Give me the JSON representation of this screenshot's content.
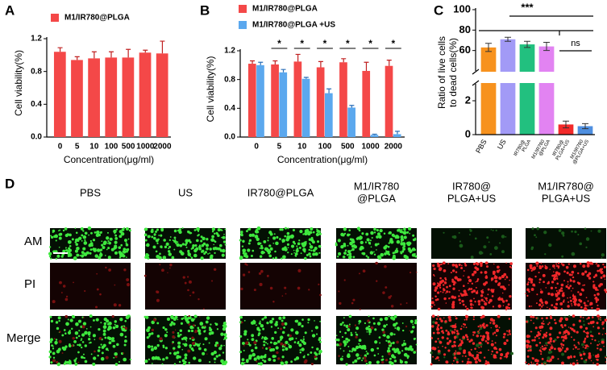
{
  "chart_data": [
    {
      "type": "bar",
      "panel_label": "A",
      "ylabel": "Cell viability(%)",
      "xlabel": "Concentration(μg/ml)",
      "categories": [
        "0",
        "5",
        "10",
        "100",
        "500",
        "1000",
        "2000"
      ],
      "series": [
        {
          "name": "M1/IR780@PLGA",
          "color": "#f44848",
          "values": [
            1.04,
            0.94,
            0.96,
            0.97,
            0.97,
            1.03,
            1.02
          ],
          "errors": [
            0.05,
            0.04,
            0.08,
            0.07,
            0.1,
            0.03,
            0.15
          ]
        }
      ],
      "ylim": [
        0,
        1.2
      ],
      "yticks": [
        {
          "value": 0,
          "label": "0.0"
        },
        {
          "value": 0.4,
          "label": "0.4"
        },
        {
          "value": 0.8,
          "label": "0.8"
        },
        {
          "value": 1.2,
          "label": "1.2"
        }
      ]
    },
    {
      "type": "bar",
      "panel_label": "B",
      "ylabel": "Cell viability(%)",
      "xlabel": "Concentration(μg/ml)",
      "categories": [
        "0",
        "5",
        "10",
        "100",
        "500",
        "1000",
        "2000"
      ],
      "series": [
        {
          "name": "M1/IR780@PLGA",
          "color": "#f44848",
          "values": [
            1.02,
            1.01,
            1.05,
            0.97,
            1.04,
            0.92,
            0.99
          ],
          "errors": [
            0.04,
            0.05,
            0.1,
            0.08,
            0.05,
            0.12,
            0.08
          ]
        },
        {
          "name": "M1/IR780@PLGA +US",
          "color": "#5ba8ee",
          "values": [
            1.0,
            0.9,
            0.81,
            0.61,
            0.41,
            0.03,
            0.04
          ],
          "errors": [
            0.04,
            0.04,
            0.02,
            0.06,
            0.03,
            0.01,
            0.04
          ]
        }
      ],
      "significance": [
        null,
        "*",
        "*",
        "*",
        "*",
        "*",
        "*"
      ],
      "ylim": [
        0,
        1.2
      ],
      "yticks": [
        {
          "value": 0,
          "label": "0.0"
        },
        {
          "value": 0.4,
          "label": "0.4"
        },
        {
          "value": 0.8,
          "label": "0.8"
        },
        {
          "value": 1.2,
          "label": "1.2"
        }
      ]
    },
    {
      "type": "broken-bar",
      "panel_label": "C",
      "ylabel": [
        "Ratio of live cells",
        "to dead cells(%)"
      ],
      "categories": [
        [
          "PBS"
        ],
        [
          "US"
        ],
        [
          "IR780@",
          "PLGA"
        ],
        [
          "M1/IR780",
          "@PLGA"
        ],
        [
          "IR780@",
          "PLGA+US"
        ],
        [
          "M1/IR780",
          "@PLGA+US"
        ]
      ],
      "colors": [
        "#f7921e",
        "#a29af6",
        "#22c07f",
        "#e283f2",
        "#f22a2a",
        "#4f8fe0"
      ],
      "values": [
        63,
        71,
        66,
        64,
        0.6,
        0.5
      ],
      "errors": [
        4,
        2,
        3,
        4,
        0.2,
        0.15
      ],
      "significance": [
        "***",
        "ns"
      ],
      "ylim": [
        0,
        100
      ],
      "ybreak": [
        3,
        40
      ],
      "yticks": [
        0,
        2,
        60,
        80,
        100
      ]
    }
  ],
  "panel_d": {
    "panel_label": "D",
    "columns": [
      [
        "PBS"
      ],
      [
        "US"
      ],
      [
        "IR780@PLGA"
      ],
      [
        "M1/IR780",
        "@PLGA"
      ],
      [
        "IR780@",
        "PLGA+US"
      ],
      [
        "M1/IR780@",
        "PLGA+US"
      ]
    ],
    "rows": [
      "AM",
      "PI",
      "Merge"
    ]
  }
}
